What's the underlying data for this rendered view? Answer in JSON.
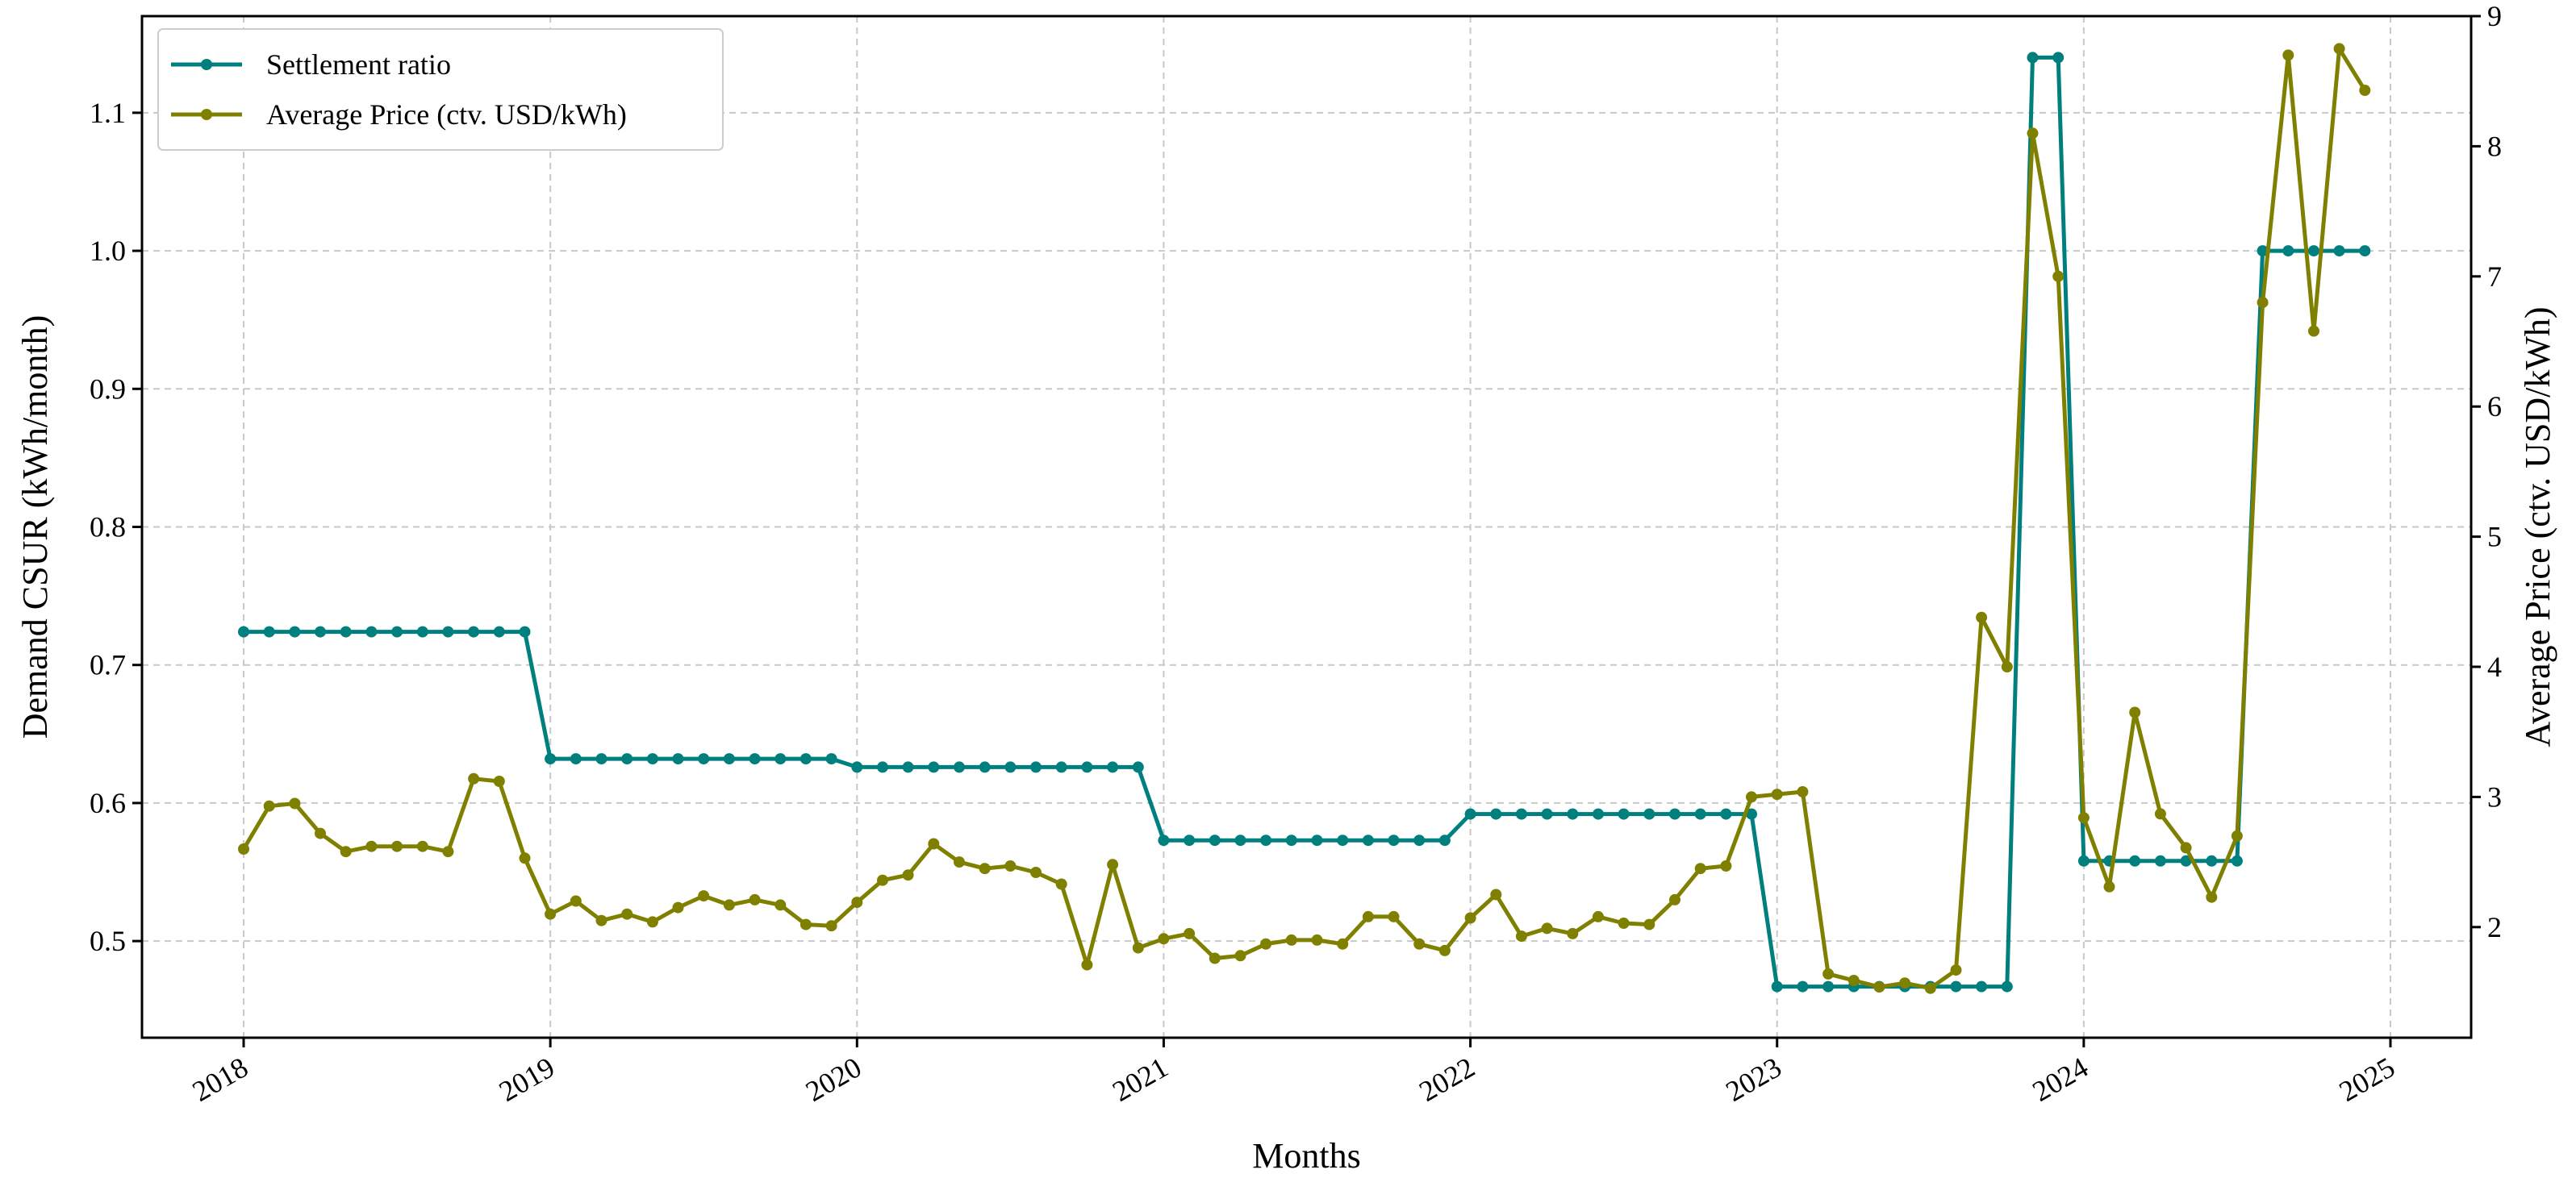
{
  "colors": {
    "settlement": "#007f7f",
    "price": "#808000"
  },
  "chart_data": {
    "type": "line",
    "xlabel": "Months",
    "ylabel_left": "Demand CSUR (kWh/month)",
    "ylabel_right": "Average Price (ctv. USD/kWh)",
    "x_ticks": [
      "2018",
      "2019",
      "2020",
      "2021",
      "2022",
      "2023",
      "2024",
      "2025"
    ],
    "y_left_ticks": [
      "0.5",
      "0.6",
      "0.7",
      "0.8",
      "0.9",
      "1.0",
      "1.1"
    ],
    "y_right_ticks": [
      "2",
      "3",
      "4",
      "5",
      "6",
      "7",
      "8",
      "9"
    ],
    "ylim_left": [
      0.43,
      1.17
    ],
    "ylim_right": [
      1.15,
      9.0
    ],
    "grid": true,
    "legend_position": "top-left",
    "x_start": "2018-01",
    "series": [
      {
        "name": "Settlement ratio",
        "axis": "left",
        "values": [
          0.724,
          0.724,
          0.724,
          0.724,
          0.724,
          0.724,
          0.724,
          0.724,
          0.724,
          0.724,
          0.724,
          0.724,
          0.632,
          0.632,
          0.632,
          0.632,
          0.632,
          0.632,
          0.632,
          0.632,
          0.632,
          0.632,
          0.632,
          0.632,
          0.626,
          0.626,
          0.626,
          0.626,
          0.626,
          0.626,
          0.626,
          0.626,
          0.626,
          0.626,
          0.626,
          0.626,
          0.573,
          0.573,
          0.573,
          0.573,
          0.573,
          0.573,
          0.573,
          0.573,
          0.573,
          0.573,
          0.573,
          0.573,
          0.592,
          0.592,
          0.592,
          0.592,
          0.592,
          0.592,
          0.592,
          0.592,
          0.592,
          0.592,
          0.592,
          0.592,
          0.467,
          0.467,
          0.467,
          0.467,
          0.467,
          0.467,
          0.467,
          0.467,
          0.467,
          0.467,
          1.14,
          1.14,
          0.558,
          0.558,
          0.558,
          0.558,
          0.558,
          0.558,
          0.558,
          1.0,
          1.0,
          1.0,
          1.0,
          1.0
        ]
      },
      {
        "name": "Average Price (ctv. USD/kWh)",
        "axis": "right",
        "values": [
          2.6,
          2.93,
          2.95,
          2.72,
          2.58,
          2.62,
          2.62,
          2.62,
          2.58,
          3.14,
          3.12,
          2.53,
          2.1,
          2.2,
          2.05,
          2.1,
          2.04,
          2.15,
          2.24,
          2.17,
          2.21,
          2.17,
          2.02,
          2.01,
          2.19,
          2.36,
          2.4,
          2.64,
          2.5,
          2.45,
          2.47,
          2.42,
          2.33,
          1.71,
          2.48,
          1.84,
          1.91,
          1.95,
          1.76,
          1.78,
          1.87,
          1.9,
          1.9,
          1.87,
          2.08,
          2.08,
          1.87,
          1.82,
          2.07,
          2.25,
          1.93,
          1.99,
          1.95,
          2.08,
          2.03,
          2.02,
          2.21,
          2.45,
          2.47,
          3.0,
          3.02,
          3.04,
          1.64,
          1.59,
          1.54,
          1.57,
          1.53,
          1.67,
          4.38,
          4.0,
          8.1,
          7.0,
          2.84,
          2.31,
          3.65,
          2.87,
          2.61,
          2.23,
          2.7,
          6.8,
          8.7,
          6.58,
          8.75,
          8.43
        ]
      }
    ]
  }
}
